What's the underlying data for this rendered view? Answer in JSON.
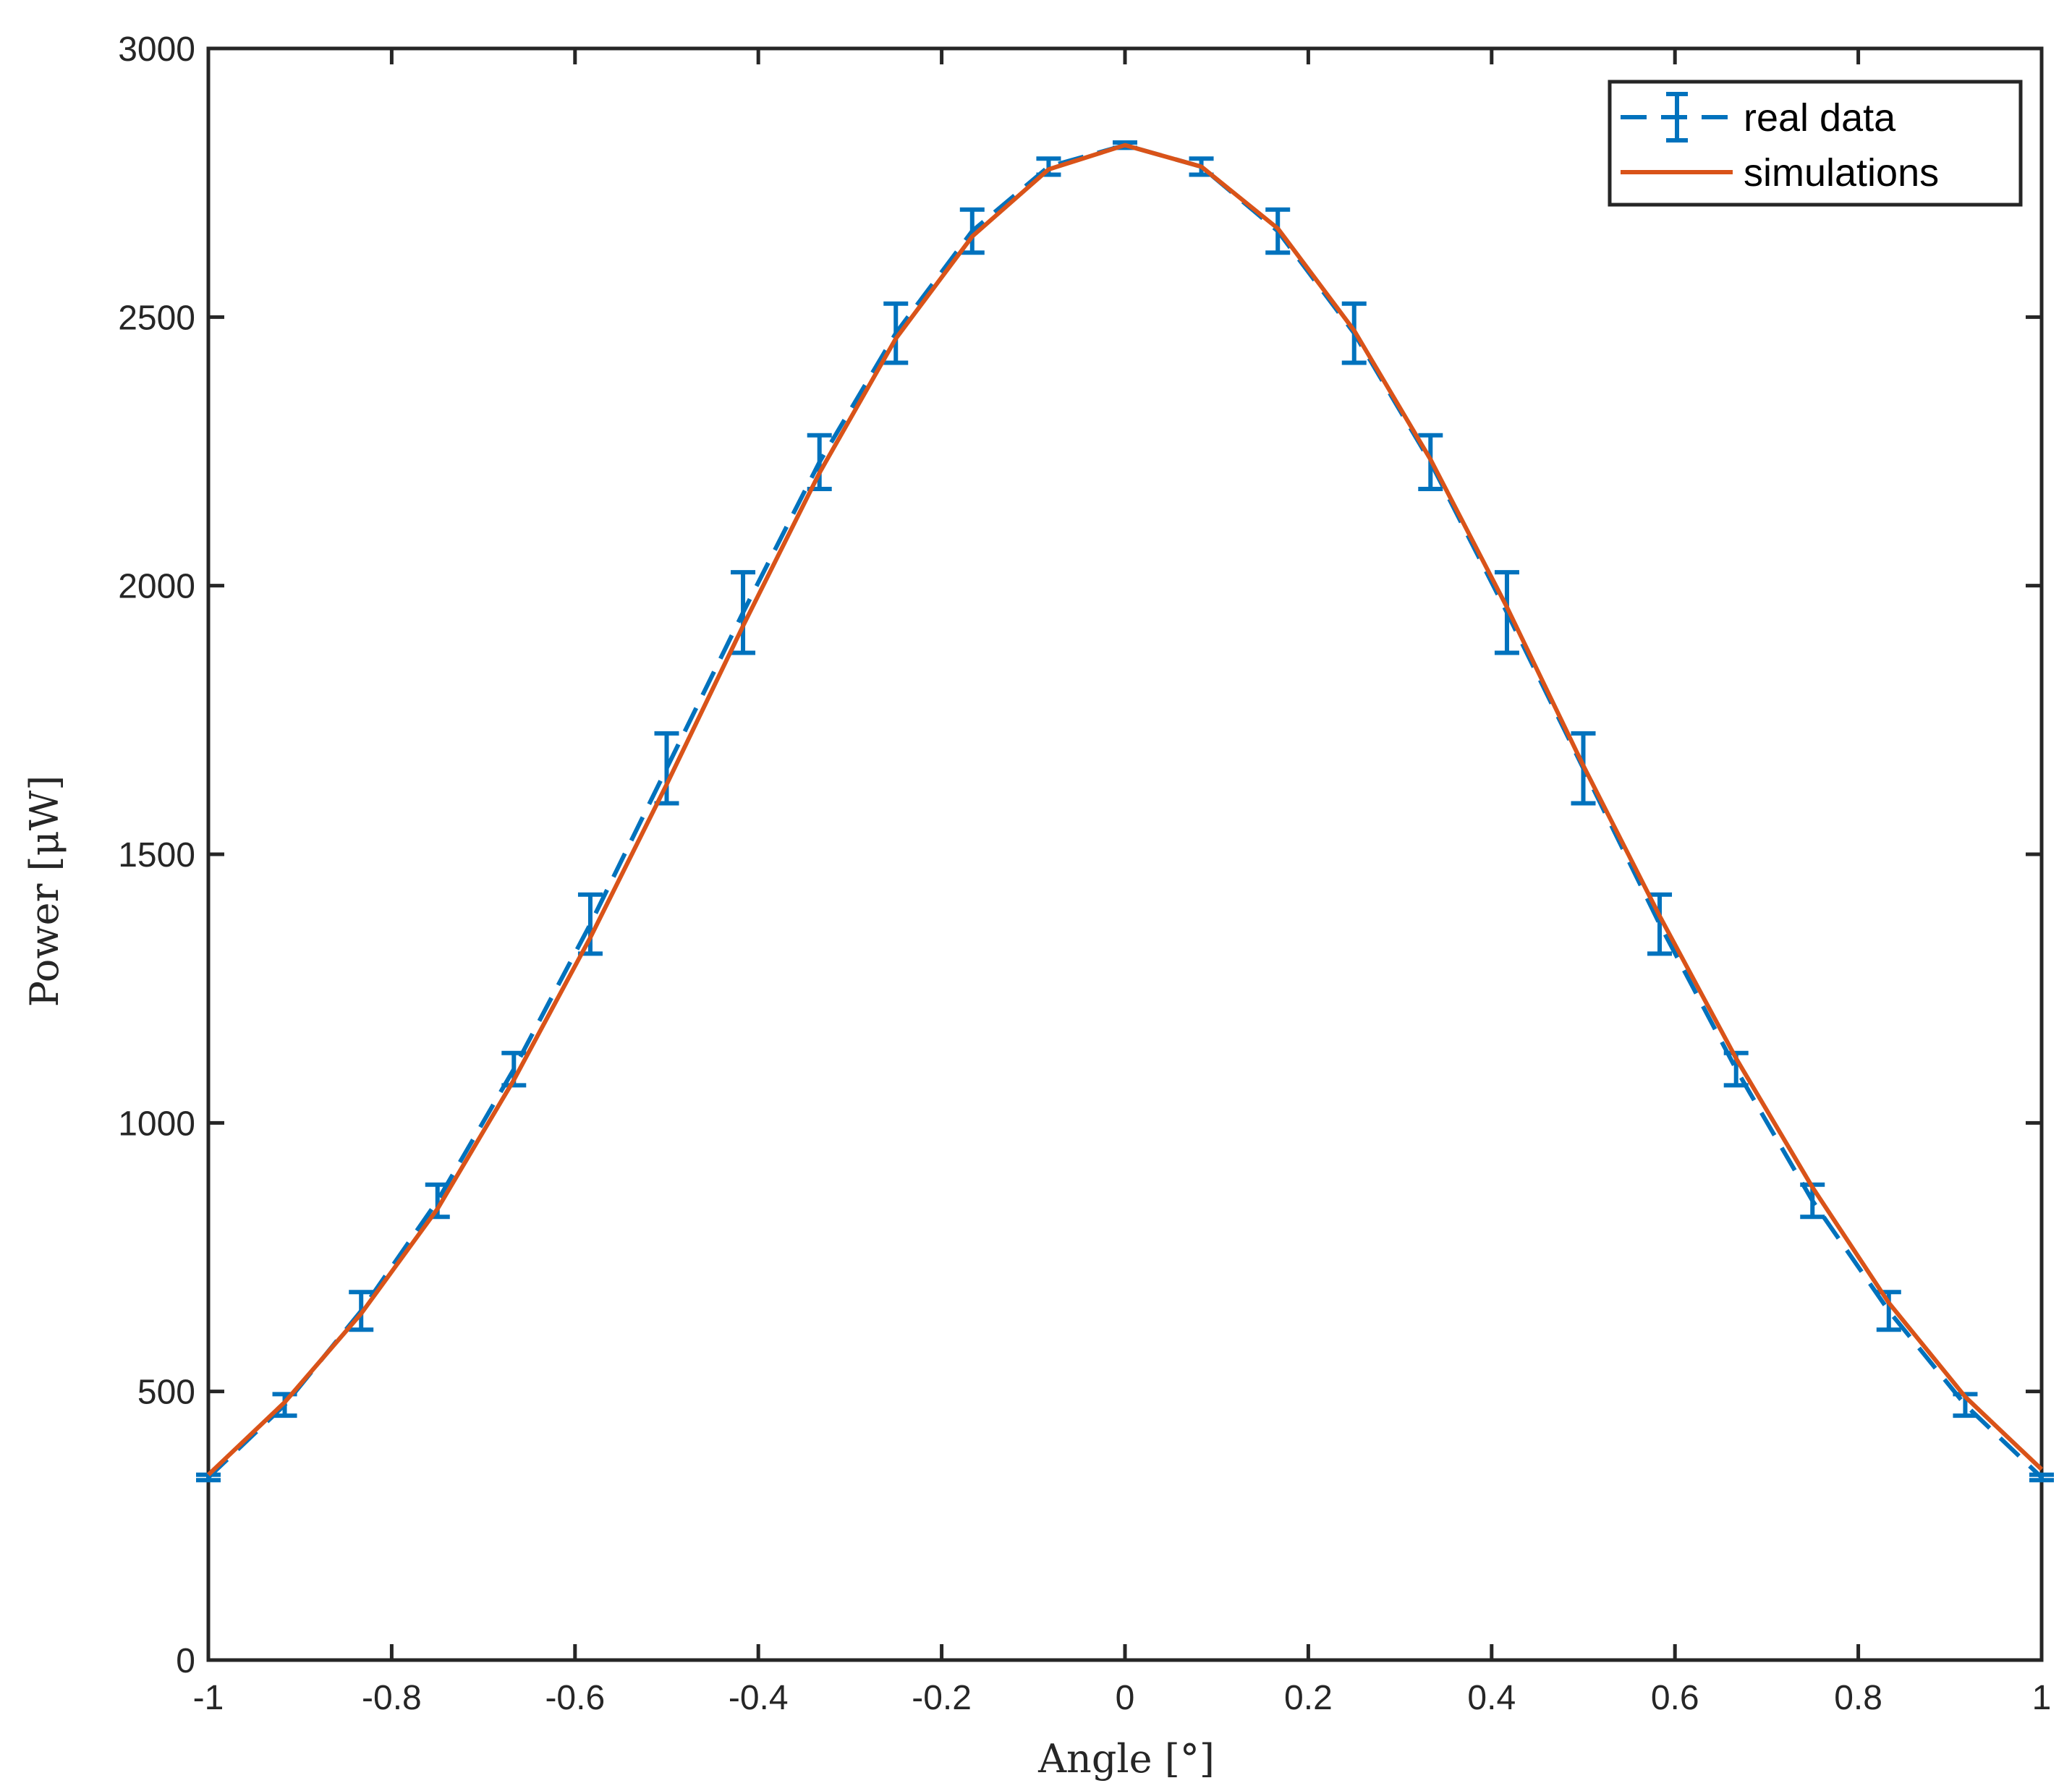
{
  "chart_data": {
    "type": "line",
    "xlabel": "Angle [°]",
    "ylabel": "Power [μW]",
    "xlim": [
      -1,
      1
    ],
    "ylim": [
      0,
      3000
    ],
    "xticks": [
      -1,
      -0.8,
      -0.6,
      -0.4,
      -0.2,
      0,
      0.2,
      0.4,
      0.6,
      0.8,
      1
    ],
    "xtick_labels": [
      "-1",
      "-0.8",
      "-0.6",
      "-0.4",
      "-0.2",
      "0",
      "0.2",
      "0.4",
      "0.6",
      "0.8",
      "1"
    ],
    "yticks": [
      0,
      500,
      1000,
      1500,
      2000,
      2500,
      3000
    ],
    "ytick_labels": [
      "0",
      "500",
      "1000",
      "1500",
      "2000",
      "2500",
      "3000"
    ],
    "grid": false,
    "legend_position": "top-right",
    "series": [
      {
        "name": "real data",
        "style": "dashed-errorbar",
        "color": "#0072BD",
        "x": [
          -1,
          -0.9167,
          -0.8333,
          -0.75,
          -0.6667,
          -0.5833,
          -0.5,
          -0.4167,
          -0.3333,
          -0.25,
          -0.1667,
          -0.0833,
          0,
          0.0833,
          0.1667,
          0.25,
          0.3333,
          0.4167,
          0.5,
          0.5833,
          0.6667,
          0.75,
          0.8333,
          0.9167,
          1
        ],
        "y": [
          340,
          475,
          650,
          855,
          1100,
          1370,
          1660,
          1950,
          2230,
          2470,
          2660,
          2780,
          2820,
          2780,
          2660,
          2470,
          2230,
          1950,
          1660,
          1370,
          1100,
          855,
          650,
          475,
          340
        ],
        "error": [
          5,
          20,
          35,
          30,
          30,
          55,
          65,
          75,
          50,
          55,
          40,
          15,
          5,
          15,
          40,
          55,
          50,
          75,
          65,
          55,
          30,
          30,
          35,
          20,
          5
        ]
      },
      {
        "name": "simulations",
        "style": "solid",
        "color": "#D95319",
        "x": [
          -1,
          -0.9167,
          -0.8333,
          -0.75,
          -0.6667,
          -0.5833,
          -0.5,
          -0.4167,
          -0.3333,
          -0.25,
          -0.1667,
          -0.0833,
          0,
          0.0833,
          0.1667,
          0.25,
          0.3333,
          0.4167,
          0.5,
          0.5833,
          0.6667,
          0.75,
          0.8333,
          0.9167,
          1
        ],
        "y": [
          345,
          480,
          645,
          840,
          1080,
          1345,
          1630,
          1925,
          2210,
          2460,
          2650,
          2775,
          2820,
          2780,
          2665,
          2475,
          2235,
          1960,
          1665,
          1385,
          1120,
          880,
          665,
          490,
          355
        ]
      }
    ]
  }
}
